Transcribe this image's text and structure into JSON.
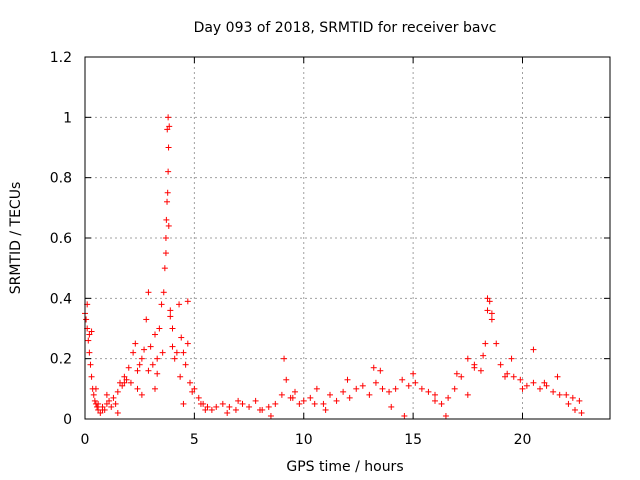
{
  "chart_data": {
    "type": "scatter",
    "title": "Day 093 of 2018, SRMTID for receiver bavc",
    "xlabel": "GPS time / hours",
    "ylabel": "SRMTID / TECUs",
    "xlim": [
      0,
      24
    ],
    "ylim": [
      0,
      1.2
    ],
    "xticks": [
      0,
      5,
      10,
      15,
      20
    ],
    "xtick_labels": [
      "0",
      "5",
      "10",
      "15",
      "20"
    ],
    "yticks": [
      0,
      0.2,
      0.4,
      0.6,
      0.8,
      1,
      1.2
    ],
    "ytick_labels": [
      "0",
      "0.2",
      "0.4",
      "0.6",
      "0.8",
      "1",
      "1.2"
    ],
    "grid": true,
    "marker": "+",
    "series": [
      {
        "name": "SRMTID",
        "color": "#ff0000",
        "x": [
          0.0,
          0.05,
          0.1,
          0.15,
          0.2,
          0.25,
          0.3,
          0.35,
          0.4,
          0.45,
          0.5,
          0.55,
          0.6,
          0.7,
          0.8,
          0.9,
          1.0,
          1.1,
          1.2,
          1.3,
          1.4,
          1.5,
          1.6,
          1.7,
          1.8,
          1.9,
          2.0,
          2.1,
          2.2,
          2.3,
          2.4,
          2.5,
          2.6,
          2.7,
          2.8,
          2.9,
          3.0,
          3.1,
          3.2,
          3.3,
          3.4,
          3.5,
          3.6,
          3.65,
          3.7,
          3.72,
          3.75,
          3.78,
          3.8,
          3.82,
          3.85,
          3.9,
          4.0,
          4.1,
          4.2,
          4.3,
          4.4,
          4.5,
          4.6,
          4.7,
          4.8,
          4.9,
          5.0,
          5.2,
          5.4,
          5.6,
          5.8,
          6.0,
          6.3,
          6.6,
          6.9,
          7.2,
          7.5,
          7.8,
          8.1,
          8.4,
          8.7,
          9.0,
          9.2,
          9.4,
          9.6,
          9.8,
          10.0,
          10.3,
          10.6,
          10.9,
          11.2,
          11.5,
          11.8,
          12.1,
          12.4,
          12.7,
          13.0,
          13.3,
          13.6,
          13.9,
          14.2,
          14.5,
          14.8,
          15.1,
          15.4,
          15.7,
          16.0,
          16.3,
          16.6,
          16.9,
          17.2,
          17.5,
          17.8,
          18.1,
          18.3,
          18.4,
          18.5,
          18.6,
          18.8,
          19.0,
          19.3,
          19.6,
          19.9,
          20.2,
          20.5,
          20.8,
          21.1,
          21.4,
          21.7,
          22.0,
          22.3,
          22.6,
          0.1,
          0.3,
          0.5,
          0.8,
          1.5,
          2.4,
          2.9,
          3.3,
          3.55,
          3.76,
          3.8,
          3.83,
          3.7,
          4.0,
          4.35,
          4.7,
          5.3,
          6.5,
          9.1,
          11.0,
          13.2,
          14.6,
          16.5,
          17.5,
          18.4,
          18.6,
          19.5,
          20.5,
          21.6,
          22.4,
          0.2,
          0.6,
          1.0,
          1.8,
          2.6,
          3.2,
          3.9,
          4.5,
          5.5,
          7.0,
          8.0,
          8.5,
          9.5,
          10.5,
          12.0,
          13.5,
          14.0,
          15.0,
          16.0,
          17.0,
          17.8,
          18.2,
          19.2,
          20.0,
          21.0,
          22.1,
          22.7
        ],
        "y": [
          0.35,
          0.33,
          0.3,
          0.26,
          0.22,
          0.18,
          0.14,
          0.1,
          0.08,
          0.06,
          0.05,
          0.04,
          0.03,
          0.02,
          0.04,
          0.03,
          0.05,
          0.06,
          0.04,
          0.07,
          0.05,
          0.09,
          0.12,
          0.11,
          0.14,
          0.13,
          0.17,
          0.12,
          0.22,
          0.25,
          0.16,
          0.18,
          0.2,
          0.23,
          0.33,
          0.16,
          0.24,
          0.18,
          0.28,
          0.2,
          0.3,
          0.38,
          0.42,
          0.5,
          0.6,
          0.66,
          0.72,
          0.75,
          0.82,
          0.9,
          0.97,
          0.36,
          0.3,
          0.2,
          0.22,
          0.38,
          0.27,
          0.22,
          0.18,
          0.25,
          0.12,
          0.09,
          0.1,
          0.07,
          0.05,
          0.04,
          0.03,
          0.04,
          0.05,
          0.04,
          0.03,
          0.05,
          0.04,
          0.06,
          0.03,
          0.04,
          0.05,
          0.08,
          0.13,
          0.07,
          0.09,
          0.05,
          0.06,
          0.07,
          0.1,
          0.05,
          0.08,
          0.06,
          0.09,
          0.07,
          0.1,
          0.11,
          0.08,
          0.12,
          0.1,
          0.09,
          0.1,
          0.13,
          0.11,
          0.12,
          0.1,
          0.09,
          0.08,
          0.05,
          0.07,
          0.1,
          0.14,
          0.2,
          0.18,
          0.16,
          0.25,
          0.36,
          0.39,
          0.33,
          0.25,
          0.18,
          0.15,
          0.14,
          0.13,
          0.11,
          0.12,
          0.1,
          0.11,
          0.09,
          0.08,
          0.08,
          0.07,
          0.06,
          0.38,
          0.29,
          0.1,
          0.03,
          0.02,
          0.1,
          0.42,
          0.15,
          0.22,
          0.96,
          1.0,
          0.64,
          0.55,
          0.24,
          0.14,
          0.39,
          0.05,
          0.02,
          0.2,
          0.03,
          0.17,
          0.01,
          0.01,
          0.08,
          0.4,
          0.35,
          0.2,
          0.23,
          0.14,
          0.03,
          0.28,
          0.05,
          0.08,
          0.12,
          0.08,
          0.1,
          0.34,
          0.05,
          0.03,
          0.06,
          0.03,
          0.01,
          0.07,
          0.05,
          0.13,
          0.16,
          0.04,
          0.15,
          0.06,
          0.15,
          0.17,
          0.21,
          0.14,
          0.1,
          0.12,
          0.05,
          0.02
        ]
      }
    ]
  }
}
